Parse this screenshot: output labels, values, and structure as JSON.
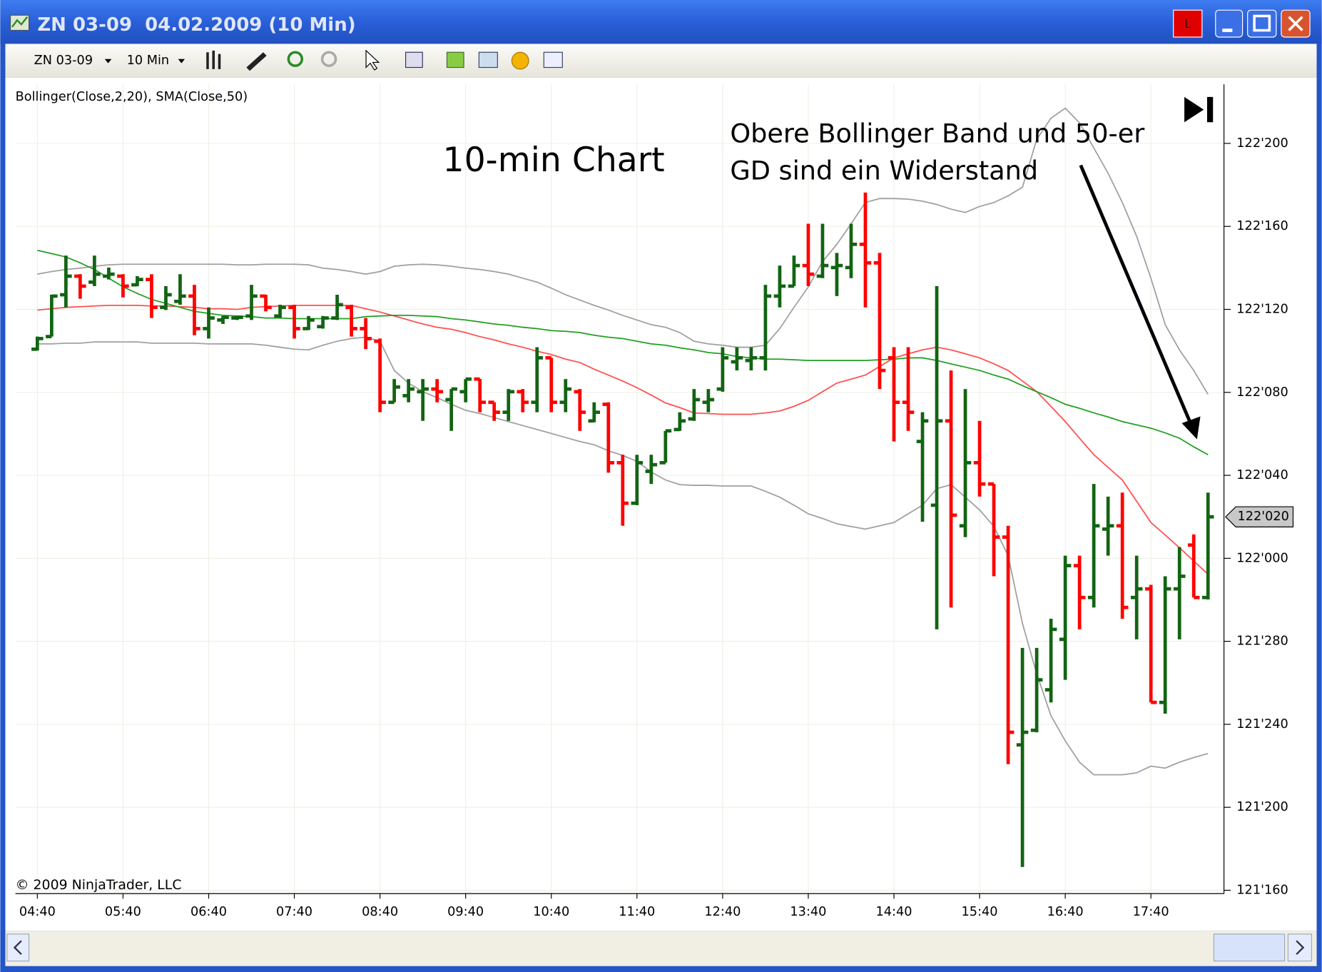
{
  "window": {
    "title": "ZN 03-09  04.02.2009 (10 Min)",
    "badge": "L"
  },
  "toolbar": {
    "instrument": "ZN 03-09",
    "interval": "10 Min"
  },
  "chart_data": {
    "type": "ohlc",
    "indicator_label": "Bollinger(Close,2,20), SMA(Close,50)",
    "title": "10-min Chart",
    "annotation": [
      "Obere Bollinger Band und 50-er",
      "GD sind ein Widerstand"
    ],
    "copyright": "© 2009 NinjaTrader, LLC",
    "up_color": "#126412",
    "down_color": "#ff0000",
    "grid": true,
    "ylim": [
      121.495,
      122.714
    ],
    "yticks": [
      {
        "value": 121.5,
        "label": "121'160"
      },
      {
        "value": 121.625,
        "label": "121'200"
      },
      {
        "value": 121.75,
        "label": "121'240"
      },
      {
        "value": 121.875,
        "label": "121'280"
      },
      {
        "value": 122,
        "label": "122'000"
      },
      {
        "value": 122.125,
        "label": "122'040"
      },
      {
        "value": 122.25,
        "label": "122'080"
      },
      {
        "value": 122.375,
        "label": "122'120"
      },
      {
        "value": 122.5,
        "label": "122'160"
      },
      {
        "value": 122.625,
        "label": "122'200"
      }
    ],
    "last_price": {
      "value": 122.0625,
      "label": "122'020"
    },
    "categories": [
      "04:40",
      null,
      null,
      null,
      null,
      null,
      "05:40",
      null,
      null,
      null,
      null,
      null,
      "06:40",
      null,
      null,
      null,
      null,
      null,
      "07:40",
      null,
      null,
      null,
      null,
      null,
      "08:40",
      null,
      null,
      null,
      null,
      null,
      "09:40",
      null,
      null,
      null,
      null,
      null,
      "10:40",
      null,
      null,
      null,
      null,
      null,
      "11:40",
      null,
      null,
      null,
      null,
      null,
      "12:40",
      null,
      null,
      null,
      null,
      null,
      "13:40",
      null,
      null,
      null,
      null,
      null,
      "14:40",
      null,
      null,
      null,
      null,
      null,
      "15:40",
      null,
      null,
      null,
      null,
      null,
      "16:40",
      null,
      null,
      null,
      null,
      null,
      "17:40",
      null,
      null,
      null,
      null
    ],
    "open": [
      122.315,
      122.334,
      122.397,
      122.425,
      122.416,
      122.425,
      122.425,
      122.412,
      122.42,
      122.378,
      122.387,
      122.395,
      122.346,
      122.359,
      122.362,
      122.365,
      122.395,
      122.365,
      122.378,
      122.346,
      122.349,
      122.362,
      122.378,
      122.346,
      122.327,
      122.235,
      122.245,
      122.251,
      122.255,
      122.239,
      122.251,
      122.27,
      122.235,
      122.22,
      122.251,
      122.235,
      122.302,
      122.235,
      122.251,
      122.207,
      122.232,
      122.144,
      122.083,
      122.131,
      122.144,
      122.194,
      122.21,
      122.235,
      122.255,
      122.296,
      122.298,
      122.302,
      122.395,
      122.41,
      122.441,
      122.425,
      122.438,
      122.438,
      122.473,
      122.445,
      122.302,
      122.235,
      122.176,
      122.08,
      122.207,
      122.049,
      122.144,
      122.112,
      122.032,
      121.719,
      121.741,
      121.802,
      121.878,
      121.989,
      121.941,
      122.044,
      122.049,
      121.941,
      121.954,
      121.783,
      121.954,
      122.02,
      121.941
    ],
    "high": [
      122.334,
      122.397,
      122.456,
      122.428,
      122.456,
      122.438,
      122.428,
      122.425,
      122.428,
      122.41,
      122.428,
      122.412,
      122.378,
      122.365,
      122.365,
      122.412,
      122.397,
      122.382,
      122.382,
      122.365,
      122.365,
      122.397,
      122.382,
      122.362,
      122.331,
      122.27,
      122.27,
      122.27,
      122.27,
      122.255,
      122.27,
      122.27,
      122.235,
      122.255,
      122.255,
      122.318,
      122.302,
      122.27,
      122.255,
      122.235,
      122.235,
      122.156,
      122.156,
      122.156,
      122.192,
      122.22,
      122.255,
      122.255,
      122.318,
      122.318,
      122.318,
      122.412,
      122.441,
      122.456,
      122.504,
      122.504,
      122.46,
      122.504,
      122.551,
      122.46,
      122.318,
      122.318,
      122.22,
      122.41,
      122.283,
      122.255,
      122.207,
      122.112,
      122.049,
      121.865,
      121.865,
      121.909,
      122.004,
      122.004,
      122.112,
      122.093,
      122.099,
      122.004,
      121.96,
      121.973,
      122.017,
      122.036,
      122.099
    ],
    "low": [
      122.313,
      122.334,
      122.378,
      122.391,
      122.41,
      122.42,
      122.393,
      122.41,
      122.362,
      122.374,
      122.382,
      122.336,
      122.331,
      122.353,
      122.359,
      122.359,
      122.372,
      122.362,
      122.331,
      122.344,
      122.346,
      122.359,
      122.334,
      122.315,
      122.22,
      122.235,
      122.235,
      122.207,
      122.235,
      122.192,
      122.235,
      122.22,
      122.207,
      122.207,
      122.22,
      122.22,
      122.22,
      122.22,
      122.192,
      122.205,
      122.129,
      122.049,
      122.08,
      122.112,
      122.144,
      122.192,
      122.207,
      122.22,
      122.251,
      122.283,
      122.283,
      122.283,
      122.378,
      122.41,
      122.41,
      122.422,
      122.395,
      122.422,
      122.378,
      122.255,
      122.176,
      122.192,
      122.055,
      121.893,
      121.926,
      122.032,
      122.093,
      121.973,
      121.69,
      121.535,
      121.738,
      121.783,
      121.817,
      121.893,
      121.926,
      122.004,
      121.909,
      121.878,
      121.783,
      121.766,
      121.878,
      121.941,
      121.938
    ],
    "close": [
      122.331,
      122.395,
      122.425,
      122.41,
      122.428,
      122.428,
      122.41,
      122.42,
      122.378,
      122.397,
      122.395,
      122.346,
      122.362,
      122.363,
      122.363,
      122.395,
      122.378,
      122.378,
      122.346,
      122.359,
      122.362,
      122.382,
      122.346,
      122.331,
      122.235,
      122.258,
      122.255,
      122.255,
      122.251,
      122.255,
      122.27,
      122.235,
      122.22,
      122.251,
      122.235,
      122.302,
      122.235,
      122.255,
      122.22,
      122.22,
      122.144,
      122.083,
      122.144,
      122.141,
      122.192,
      122.207,
      122.239,
      122.239,
      122.302,
      122.302,
      122.302,
      122.395,
      122.41,
      122.441,
      122.428,
      122.441,
      122.441,
      122.473,
      122.445,
      122.283,
      122.235,
      122.22,
      122.207,
      122.207,
      122.065,
      122.144,
      122.112,
      122.032,
      121.738,
      121.738,
      121.817,
      121.893,
      121.989,
      121.941,
      122.049,
      122.049,
      121.926,
      121.954,
      121.783,
      121.954,
      121.973,
      121.941,
      122.0625
    ],
    "indicators": [
      {
        "color": "#a0a0a0",
        "values": [
          122.428,
          122.432,
          122.435,
          122.437,
          122.44,
          122.442,
          122.443,
          122.443,
          122.443,
          122.443,
          122.443,
          122.443,
          122.443,
          122.443,
          122.442,
          122.442,
          122.443,
          122.443,
          122.443,
          122.442,
          122.437,
          122.435,
          122.432,
          122.428,
          122.432,
          122.44,
          122.442,
          122.443,
          122.442,
          122.44,
          122.437,
          122.435,
          122.432,
          122.428,
          122.422,
          122.416,
          122.407,
          122.397,
          122.389,
          122.381,
          122.374,
          122.366,
          122.359,
          122.352,
          122.348,
          122.34,
          122.327,
          122.323,
          122.321,
          122.318,
          122.318,
          122.321,
          122.346,
          122.378,
          122.409,
          122.447,
          122.473,
          122.504,
          122.536,
          122.542,
          122.542,
          122.541,
          122.538,
          122.533,
          122.526,
          122.521,
          122.53,
          122.536,
          122.546,
          122.559,
          122.631,
          122.663,
          122.678,
          122.656,
          122.618,
          122.58,
          122.536,
          122.485,
          122.422,
          122.352,
          122.314,
          122.283,
          122.247
        ]
      },
      {
        "color": "#a0a0a0",
        "values": [
          122.323,
          122.323,
          122.324,
          122.324,
          122.326,
          122.326,
          122.326,
          122.326,
          122.324,
          122.324,
          122.324,
          122.324,
          122.323,
          122.323,
          122.323,
          122.323,
          122.321,
          122.318,
          122.315,
          122.314,
          122.321,
          122.327,
          122.331,
          122.333,
          122.327,
          122.283,
          122.264,
          122.251,
          122.242,
          122.232,
          122.223,
          122.218,
          122.212,
          122.206,
          122.2,
          122.194,
          122.188,
          122.182,
          122.176,
          122.171,
          122.162,
          122.155,
          122.146,
          122.13,
          122.118,
          122.111,
          122.11,
          122.11,
          122.109,
          122.109,
          122.109,
          122.101,
          122.092,
          122.08,
          122.067,
          122.06,
          122.052,
          122.048,
          122.044,
          122.049,
          122.054,
          122.067,
          122.08,
          122.105,
          122.111,
          122.092,
          122.073,
          122.048,
          122.004,
          121.902,
          121.826,
          121.763,
          121.725,
          121.693,
          121.674,
          121.674,
          121.674,
          121.677,
          121.687,
          121.684,
          121.693,
          121.7,
          121.706
        ]
      },
      {
        "color": "#ff5050",
        "values": [
          122.374,
          122.376,
          122.378,
          122.379,
          122.38,
          122.381,
          122.381,
          122.381,
          122.38,
          122.38,
          122.379,
          122.378,
          122.376,
          122.376,
          122.375,
          122.378,
          122.379,
          122.38,
          122.381,
          122.381,
          122.381,
          122.381,
          122.381,
          122.376,
          122.371,
          122.365,
          122.359,
          122.353,
          122.348,
          122.345,
          122.34,
          122.334,
          122.329,
          122.323,
          122.318,
          122.312,
          122.307,
          122.3,
          122.295,
          122.285,
          122.276,
          122.267,
          122.257,
          122.246,
          122.234,
          122.227,
          122.219,
          122.218,
          122.217,
          122.217,
          122.217,
          122.219,
          122.222,
          122.229,
          122.238,
          122.251,
          122.264,
          122.27,
          122.276,
          122.289,
          122.302,
          122.308,
          122.314,
          122.318,
          122.314,
          122.308,
          122.302,
          122.293,
          122.283,
          122.267,
          122.251,
          122.229,
          122.206,
          122.181,
          122.156,
          122.137,
          122.118,
          122.086,
          122.054,
          122.035,
          122.016,
          121.996,
          121.976
        ]
      },
      {
        "color": "#22a022",
        "values": [
          122.464,
          122.459,
          122.454,
          122.445,
          122.435,
          122.422,
          122.409,
          122.399,
          122.39,
          122.384,
          122.378,
          122.372,
          122.369,
          122.366,
          122.365,
          122.364,
          122.362,
          122.362,
          122.361,
          122.361,
          122.361,
          122.361,
          122.361,
          122.364,
          122.365,
          122.366,
          122.366,
          122.365,
          122.364,
          122.361,
          122.359,
          122.356,
          122.353,
          122.351,
          122.348,
          122.346,
          122.343,
          122.342,
          122.34,
          122.336,
          122.333,
          122.331,
          122.327,
          122.323,
          122.321,
          122.317,
          122.314,
          122.31,
          122.308,
          122.304,
          122.302,
          122.3,
          122.3,
          122.299,
          122.298,
          122.298,
          122.298,
          122.298,
          122.298,
          122.299,
          122.3,
          122.302,
          122.302,
          122.298,
          122.293,
          122.288,
          122.283,
          122.276,
          122.27,
          122.26,
          122.251,
          122.242,
          122.232,
          122.226,
          122.219,
          122.213,
          122.206,
          122.201,
          122.196,
          122.189,
          122.181,
          122.168,
          122.156
        ]
      }
    ]
  }
}
